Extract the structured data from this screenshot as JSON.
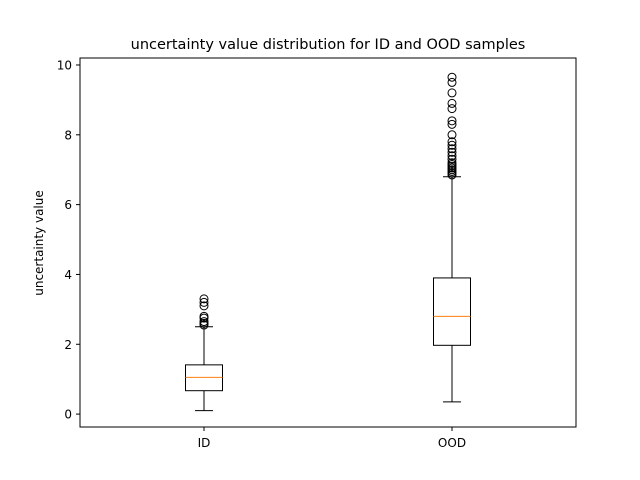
{
  "chart_data": {
    "type": "boxplot",
    "title": "uncertainty value distribution for ID and OOD samples",
    "xlabel": "",
    "ylabel": "uncertainty value",
    "categories": [
      "ID",
      "OOD"
    ],
    "ylim": [
      -0.37,
      10.2
    ],
    "yticks": [
      0,
      2,
      4,
      6,
      8,
      10
    ],
    "grid": false,
    "colors": {
      "box": "#000000",
      "median": "#ff7f0e",
      "background": "#ffffff"
    },
    "boxes": [
      {
        "label": "ID",
        "whisker_low": 0.1,
        "q1": 0.67,
        "median": 1.05,
        "q3": 1.41,
        "whisker_high": 2.5,
        "outliers": [
          2.55,
          2.6,
          2.65,
          2.75,
          2.8,
          3.1,
          3.2,
          3.3
        ]
      },
      {
        "label": "OOD",
        "whisker_low": 0.35,
        "q1": 1.97,
        "median": 2.8,
        "q3": 3.9,
        "whisker_high": 6.8,
        "outliers": [
          6.85,
          6.9,
          6.95,
          7.0,
          7.05,
          7.1,
          7.15,
          7.2,
          7.3,
          7.4,
          7.5,
          7.6,
          7.7,
          7.8,
          8.0,
          8.3,
          8.4,
          8.75,
          8.9,
          9.2,
          9.5,
          9.65
        ]
      }
    ]
  }
}
